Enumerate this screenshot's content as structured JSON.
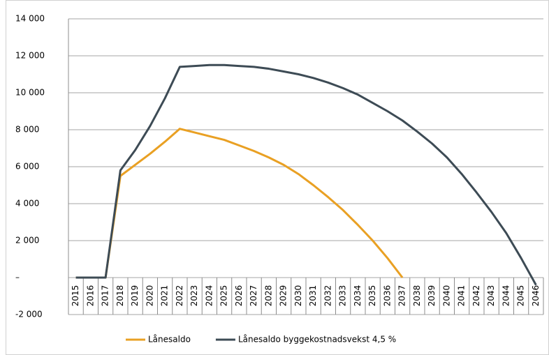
{
  "chart_data": {
    "type": "line",
    "categories": [
      "2015",
      "2016",
      "2017",
      "2018",
      "2019",
      "2020",
      "2021",
      "2022",
      "2023",
      "2024",
      "2025",
      "2026",
      "2027",
      "2028",
      "2029",
      "2030",
      "2031",
      "2032",
      "2033",
      "2034",
      "2035",
      "2036",
      "2037",
      "2038",
      "2039",
      "2040",
      "2041",
      "2042",
      "2043",
      "2044",
      "2045",
      "2046"
    ],
    "series": [
      {
        "name": "Lånesaldo",
        "color": "#e9a023",
        "values": [
          0,
          0,
          0,
          5500,
          6100,
          6700,
          7350,
          8050,
          7850,
          7650,
          7450,
          7150,
          6850,
          6500,
          6100,
          5600,
          5000,
          4350,
          3650,
          2850,
          2000,
          1050,
          0,
          null,
          null,
          null,
          null,
          null,
          null,
          null,
          null,
          null
        ]
      },
      {
        "name": "Lånesaldo byggekostnadsvekst 4,5 %",
        "color": "#3d4b55",
        "values": [
          0,
          0,
          0,
          5800,
          6900,
          8200,
          9700,
          11400,
          11450,
          11500,
          11500,
          11450,
          11400,
          11300,
          11150,
          11000,
          10800,
          10550,
          10250,
          9900,
          9450,
          9000,
          8500,
          7900,
          7250,
          6500,
          5600,
          4600,
          3550,
          2400,
          1050,
          -400
        ]
      }
    ],
    "ylim": [
      -2000,
      14000
    ],
    "yticks": [
      {
        "value": -2000,
        "label": "-2 000"
      },
      {
        "value": 0,
        "label": "–"
      },
      {
        "value": 2000,
        "label": "2 000"
      },
      {
        "value": 4000,
        "label": "4 000"
      },
      {
        "value": 6000,
        "label": "6 000"
      },
      {
        "value": 8000,
        "label": "8 000"
      },
      {
        "value": 10000,
        "label": "10 000"
      },
      {
        "value": 12000,
        "label": "12 000"
      },
      {
        "value": 14000,
        "label": "14 000"
      }
    ],
    "grid": true,
    "legend": "bottom"
  }
}
